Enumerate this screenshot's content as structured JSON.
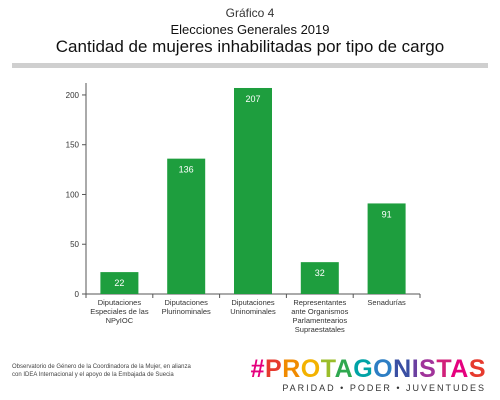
{
  "header": {
    "supertitle": "Gráfico 4",
    "subtitle": "Elecciones Generales 2019",
    "title": "Cantidad de mujeres inhabilitadas por tipo de cargo"
  },
  "chart_data": {
    "type": "bar",
    "categories": [
      [
        "Diputaciones",
        "Especiales de las",
        "NPyIOC"
      ],
      [
        "Diputaciones",
        "Plurinominales"
      ],
      [
        "Diputaciones",
        "Uninominales"
      ],
      [
        "Representantes",
        "ante Organismos",
        "Parlamentearios",
        "Supraestatales"
      ],
      [
        "Senadurías"
      ]
    ],
    "values": [
      22,
      136,
      207,
      32,
      91
    ],
    "data_labels": [
      "22",
      "136",
      "207",
      "32",
      "91"
    ],
    "yticks": [
      0,
      50,
      100,
      150,
      200
    ],
    "ylim": [
      0,
      210
    ],
    "bar_color": "#1e9e3e",
    "grid": false
  },
  "footer": {
    "source_line1": "Observatorio de Género de la Coordinadora de la Mujer, en alianza",
    "source_line2": "con IDEA Internacional y el apoyo de la Embajada de Suecia"
  },
  "brand": {
    "name": "#PROTAGONISTAS",
    "tagline": "PARIDAD • PODER • JUVENTUDES",
    "letter_colors": [
      "#e5007e",
      "#e63a2e",
      "#f08a00",
      "#f3b200",
      "#9bbd2a",
      "#2fa84f",
      "#00a3a6",
      "#2d7ec4",
      "#3a4fa3",
      "#6b3fa0",
      "#a0339a",
      "#d1207a",
      "#e5007e",
      "#e63a2e"
    ]
  }
}
